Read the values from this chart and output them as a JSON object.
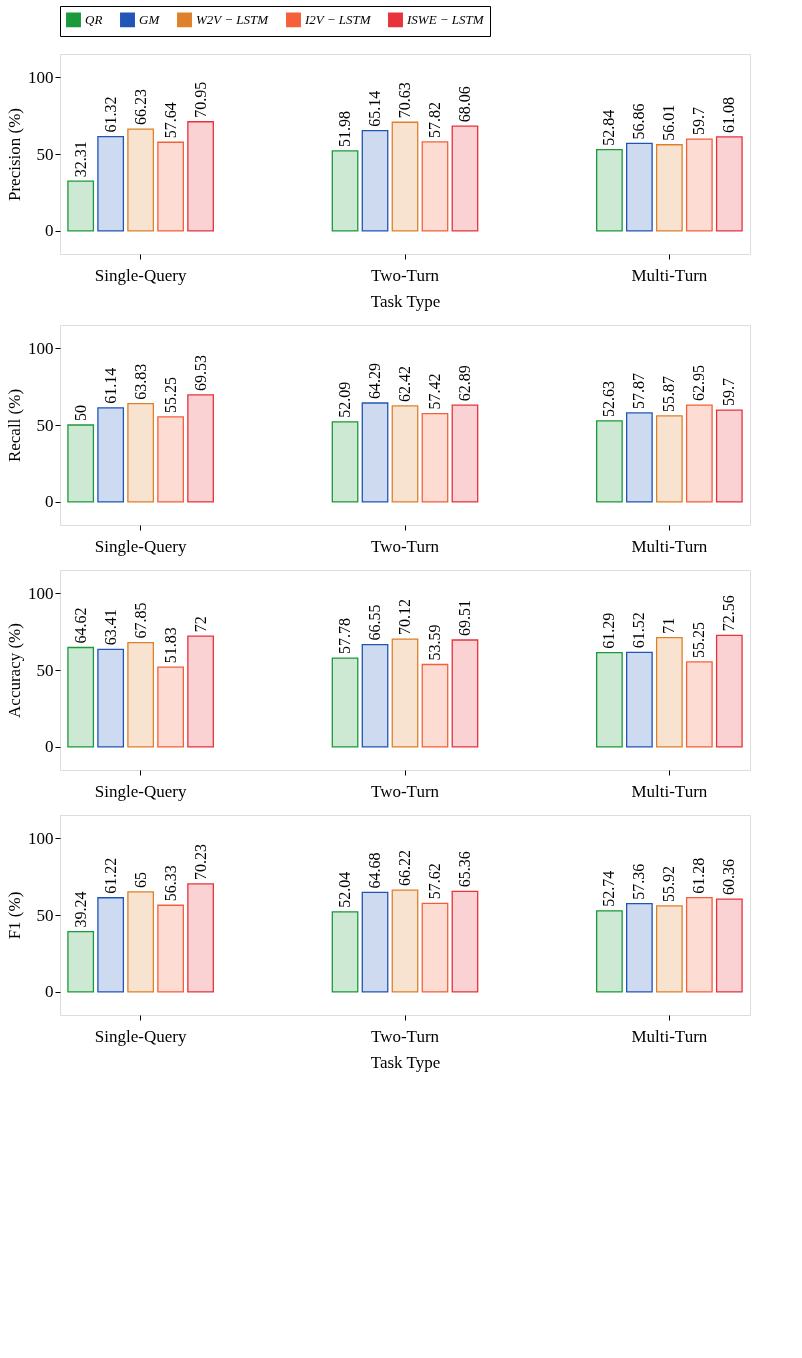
{
  "chart_data": [
    {
      "type": "bar",
      "ylabel": "Precision (%)",
      "xlabel": "Task Type",
      "categories": [
        "Single-Query",
        "Two-Turn",
        "Multi-Turn"
      ],
      "ylim": [
        -15,
        115
      ],
      "yticks": [
        0,
        50,
        100
      ],
      "data_labels": true,
      "legend": "top",
      "series": [
        {
          "name": "QR",
          "color": "#1a9a3a",
          "values": [
            32.31,
            51.98,
            52.84
          ]
        },
        {
          "name": "GM",
          "color": "#2255b8",
          "values": [
            61.32,
            65.14,
            56.86
          ]
        },
        {
          "name": "W2V − LSTM",
          "color": "#e0802a",
          "values": [
            66.23,
            70.63,
            56.01
          ]
        },
        {
          "name": "I2V − LSTM",
          "color": "#f5603a",
          "values": [
            57.64,
            57.82,
            59.7
          ]
        },
        {
          "name": "ISWE − LSTM",
          "color": "#e8323c",
          "values": [
            70.95,
            68.06,
            61.08
          ]
        }
      ]
    },
    {
      "type": "bar",
      "ylabel": "Recall (%)",
      "categories": [
        "Single-Query",
        "Two-Turn",
        "Multi-Turn"
      ],
      "ylim": [
        -15,
        115
      ],
      "yticks": [
        0,
        50,
        100
      ],
      "data_labels": true,
      "series": [
        {
          "name": "QR",
          "color": "#1a9a3a",
          "values": [
            50,
            52.09,
            52.63
          ]
        },
        {
          "name": "GM",
          "color": "#2255b8",
          "values": [
            61.14,
            64.29,
            57.87
          ]
        },
        {
          "name": "W2V − LSTM",
          "color": "#e0802a",
          "values": [
            63.83,
            62.42,
            55.87
          ]
        },
        {
          "name": "I2V − LSTM",
          "color": "#f5603a",
          "values": [
            55.25,
            57.42,
            62.95
          ]
        },
        {
          "name": "ISWE − LSTM",
          "color": "#e8323c",
          "values": [
            69.53,
            62.89,
            59.7
          ]
        }
      ]
    },
    {
      "type": "bar",
      "ylabel": "Accuracy (%)",
      "categories": [
        "Single-Query",
        "Two-Turn",
        "Multi-Turn"
      ],
      "ylim": [
        -15,
        115
      ],
      "yticks": [
        0,
        50,
        100
      ],
      "data_labels": true,
      "series": [
        {
          "name": "QR",
          "color": "#1a9a3a",
          "values": [
            64.62,
            57.78,
            61.29
          ]
        },
        {
          "name": "GM",
          "color": "#2255b8",
          "values": [
            63.41,
            66.55,
            61.52
          ]
        },
        {
          "name": "W2V − LSTM",
          "color": "#e0802a",
          "values": [
            67.85,
            70.12,
            71
          ]
        },
        {
          "name": "I2V − LSTM",
          "color": "#f5603a",
          "values": [
            51.83,
            53.59,
            55.25
          ]
        },
        {
          "name": "ISWE − LSTM",
          "color": "#e8323c",
          "values": [
            72,
            69.51,
            72.56
          ]
        }
      ]
    },
    {
      "type": "bar",
      "ylabel": "F1 (%)",
      "xlabel": "Task Type",
      "categories": [
        "Single-Query",
        "Two-Turn",
        "Multi-Turn"
      ],
      "ylim": [
        -15,
        115
      ],
      "yticks": [
        0,
        50,
        100
      ],
      "data_labels": true,
      "series": [
        {
          "name": "QR",
          "color": "#1a9a3a",
          "values": [
            39.24,
            52.04,
            52.74
          ]
        },
        {
          "name": "GM",
          "color": "#2255b8",
          "values": [
            61.22,
            64.68,
            57.36
          ]
        },
        {
          "name": "W2V − LSTM",
          "color": "#e0802a",
          "values": [
            65,
            66.22,
            55.92
          ]
        },
        {
          "name": "I2V − LSTM",
          "color": "#f5603a",
          "values": [
            56.33,
            57.62,
            61.28
          ]
        },
        {
          "name": "ISWE − LSTM",
          "color": "#e8323c",
          "values": [
            70.23,
            65.36,
            60.36
          ]
        }
      ]
    }
  ]
}
